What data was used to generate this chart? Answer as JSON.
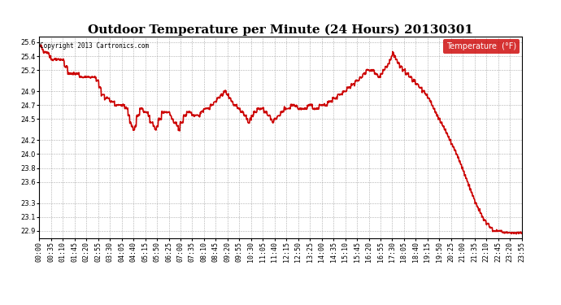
{
  "title": "Outdoor Temperature per Minute (24 Hours) 20130301",
  "copyright_text": "Copyright 2013 Cartronics.com",
  "legend_label": "Temperature  (°F)",
  "line_color": "#cc0000",
  "background_color": "#ffffff",
  "plot_bg_color": "#ffffff",
  "grid_color": "#999999",
  "ylim": [
    22.8,
    25.68
  ],
  "yticks": [
    22.9,
    23.1,
    23.3,
    23.6,
    23.8,
    24.0,
    24.2,
    24.5,
    24.7,
    24.9,
    25.2,
    25.4,
    25.6
  ],
  "title_fontsize": 11,
  "tick_fontsize": 6,
  "line_width": 1.2,
  "x_tick_labels": [
    "00:00",
    "00:35",
    "01:10",
    "01:45",
    "02:20",
    "02:55",
    "03:30",
    "04:05",
    "04:40",
    "05:15",
    "05:50",
    "06:25",
    "07:00",
    "07:35",
    "08:10",
    "08:45",
    "09:20",
    "09:55",
    "10:30",
    "11:05",
    "11:40",
    "12:15",
    "12:50",
    "13:25",
    "14:00",
    "14:35",
    "15:10",
    "15:45",
    "16:20",
    "16:55",
    "17:30",
    "18:05",
    "18:40",
    "19:15",
    "19:50",
    "20:25",
    "21:00",
    "21:35",
    "22:10",
    "22:45",
    "23:20",
    "23:55"
  ],
  "num_points": 1440
}
